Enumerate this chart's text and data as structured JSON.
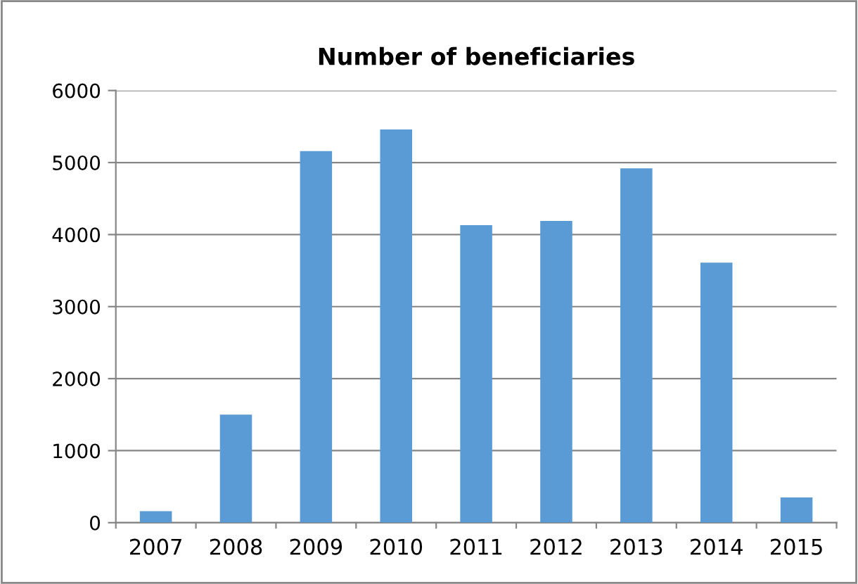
{
  "chart_data": {
    "type": "bar",
    "title": "Number of beneficiaries",
    "categories": [
      "2007",
      "2008",
      "2009",
      "2010",
      "2011",
      "2012",
      "2013",
      "2014",
      "2015"
    ],
    "values": [
      160,
      1500,
      5160,
      5460,
      4130,
      4190,
      4920,
      3610,
      350
    ],
    "color": "#5b9bd5",
    "ylim": [
      0,
      6000
    ],
    "yticks": [
      0,
      1000,
      2000,
      3000,
      4000,
      5000,
      6000
    ],
    "grid": "y",
    "legend": false
  }
}
